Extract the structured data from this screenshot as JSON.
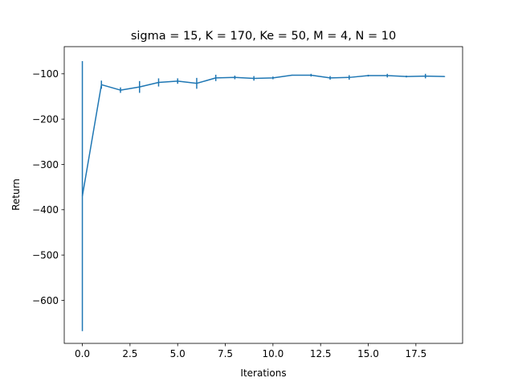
{
  "chart_data": {
    "type": "line",
    "title": "sigma = 15, K = 170, Ke = 50, M = 4, N = 10",
    "xlabel": "Iterations",
    "ylabel": "Return",
    "xlim": [
      -0.95,
      19.95
    ],
    "ylim": [
      -695,
      -40
    ],
    "xticks": [
      0,
      2.5,
      5,
      7.5,
      10,
      12.5,
      15,
      17.5
    ],
    "xtick_labels": [
      "0.0",
      "2.5",
      "5.0",
      "7.5",
      "10.0",
      "12.5",
      "15.0",
      "17.5"
    ],
    "yticks": [
      -600,
      -500,
      -400,
      -300,
      -200,
      -100
    ],
    "ytick_labels": [
      "−600",
      "−500",
      "−400",
      "−300",
      "−200",
      "−100"
    ],
    "grid": false,
    "series": [
      {
        "color": "#1f77b4",
        "x": [
          0,
          1,
          2,
          3,
          4,
          5,
          6,
          7,
          8,
          9,
          10,
          11,
          12,
          13,
          14,
          15,
          16,
          17,
          18,
          19
        ],
        "y": [
          -370,
          -124,
          -136,
          -129,
          -119,
          -116,
          -121,
          -109,
          -108,
          -110,
          -109,
          -103,
          -103,
          -109,
          -108,
          -104,
          -104,
          -106,
          -105,
          -106
        ],
        "err": [
          298,
          9,
          6,
          13,
          9,
          6,
          12,
          7,
          4,
          5,
          3,
          1,
          3,
          4,
          5,
          2,
          4,
          2,
          5,
          1
        ]
      }
    ]
  }
}
